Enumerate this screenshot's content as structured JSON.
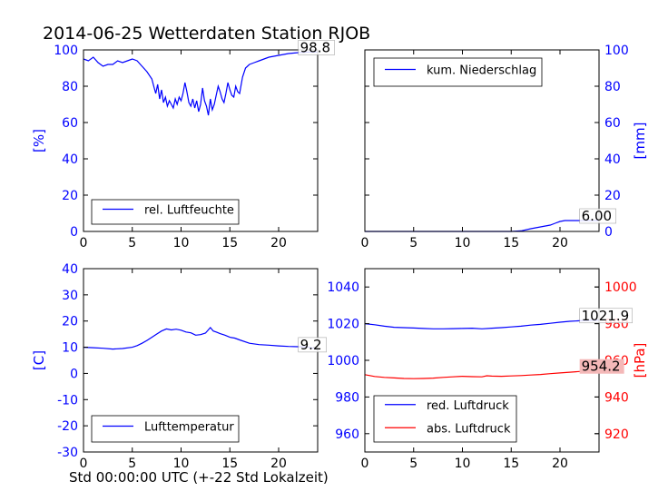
{
  "figure": {
    "title": "2014-06-25 Wetterdaten Station RJOB",
    "xlabel_bottom": "Std 00:00:00 UTC (+-22 Std Lokalzeit)"
  },
  "colors": {
    "blue": "#0000ff",
    "red": "#ff0000",
    "axis": "#000000"
  },
  "chart_data": [
    {
      "type": "line",
      "panel": "top-left",
      "ylabel": "[%]",
      "ylabel_side": "left",
      "xlim": [
        0,
        24
      ],
      "ylim": [
        0,
        100
      ],
      "xticks": [
        0,
        5,
        10,
        15,
        20
      ],
      "yticks": [
        0,
        20,
        40,
        60,
        80,
        100
      ],
      "ytick_color": "blue",
      "grid": false,
      "legend_position": "lower-left",
      "series": [
        {
          "name": "rel. Luftfeuchte",
          "color": "blue",
          "x": [
            0,
            0.5,
            1,
            1.5,
            2,
            2.5,
            3,
            3.5,
            4,
            4.5,
            5,
            5.5,
            6,
            6.5,
            7,
            7.2,
            7.4,
            7.6,
            7.8,
            8,
            8.2,
            8.4,
            8.6,
            8.8,
            9,
            9.2,
            9.4,
            9.6,
            9.8,
            10,
            10.2,
            10.4,
            10.6,
            10.8,
            11,
            11.2,
            11.4,
            11.6,
            11.8,
            12,
            12.2,
            12.4,
            12.6,
            12.8,
            13,
            13.2,
            13.4,
            13.6,
            13.8,
            14,
            14.2,
            14.4,
            14.6,
            14.8,
            15,
            15.2,
            15.4,
            15.6,
            15.8,
            16,
            16.3,
            16.6,
            17,
            17.5,
            18,
            18.5,
            19,
            20,
            21,
            22,
            23,
            24
          ],
          "y": [
            95,
            94,
            96,
            93,
            91,
            92,
            92,
            94,
            93,
            94,
            95,
            94,
            91,
            88,
            84,
            80,
            76,
            81,
            73,
            78,
            71,
            74,
            69,
            72,
            70,
            68,
            73,
            70,
            74,
            72,
            76,
            82,
            77,
            71,
            69,
            73,
            68,
            72,
            66,
            70,
            79,
            72,
            69,
            64,
            73,
            67,
            70,
            75,
            80,
            77,
            73,
            71,
            76,
            82,
            78,
            75,
            74,
            80,
            77,
            76,
            85,
            90,
            92,
            93,
            94,
            95,
            96,
            97,
            98,
            98.5,
            98.8,
            98.8
          ]
        }
      ],
      "annotations": [
        {
          "label": "98.8",
          "color": "black",
          "at": [
            22.2,
            98.8
          ]
        }
      ]
    },
    {
      "type": "line",
      "panel": "top-right",
      "ylabel": "[mm]",
      "ylabel_side": "right",
      "xlim": [
        0,
        24
      ],
      "ylim": [
        0,
        100
      ],
      "xticks": [
        0,
        5,
        10,
        15,
        20
      ],
      "yticks": [
        0,
        20,
        40,
        60,
        80,
        100
      ],
      "ytick_color": "blue",
      "grid": false,
      "legend_position": "upper-left",
      "series": [
        {
          "name": "kum. Niederschlag",
          "color": "blue",
          "x": [
            0,
            5,
            10,
            15,
            16,
            17,
            18,
            19,
            19.5,
            20,
            20.5,
            24
          ],
          "y": [
            0,
            0,
            0,
            0,
            0.3,
            1.5,
            2.5,
            3.5,
            4.5,
            5.5,
            6.0,
            6.0
          ]
        }
      ],
      "annotations": [
        {
          "label": "6.00",
          "color": "black",
          "at": [
            22.2,
            6.0
          ]
        }
      ]
    },
    {
      "type": "line",
      "panel": "bottom-left",
      "ylabel": "[C]",
      "ylabel_side": "left",
      "xlim": [
        0,
        24
      ],
      "ylim": [
        -30,
        40
      ],
      "xticks": [
        0,
        5,
        10,
        15,
        20
      ],
      "yticks": [
        -30,
        -20,
        -10,
        0,
        10,
        20,
        30,
        40
      ],
      "ytick_color": "blue",
      "grid": false,
      "legend_position": "lower-left",
      "series": [
        {
          "name": "Lufttemperatur",
          "color": "blue",
          "x": [
            0,
            1,
            2,
            3,
            4,
            5,
            5.5,
            6,
            6.5,
            7,
            7.5,
            8,
            8.5,
            9,
            9.5,
            10,
            10.5,
            11,
            11.5,
            12,
            12.5,
            13,
            13.3,
            13.6,
            14,
            14.5,
            15,
            15.5,
            16,
            17,
            18,
            19,
            20,
            21,
            22,
            23,
            24
          ],
          "y": [
            10,
            9.8,
            9.6,
            9.3,
            9.5,
            10,
            10.6,
            11.5,
            12.6,
            13.8,
            15,
            16.2,
            17,
            16.6,
            16.9,
            16.5,
            15.8,
            15.5,
            14.6,
            14.8,
            15.4,
            17.5,
            16.2,
            15.8,
            15.2,
            14.6,
            13.8,
            13.5,
            12.8,
            11.5,
            11,
            10.8,
            10.5,
            10.3,
            10.2,
            10.1,
            9.2
          ]
        }
      ],
      "annotations": [
        {
          "label": "9.2",
          "color": "black",
          "at": [
            22.2,
            9.2
          ]
        }
      ]
    },
    {
      "type": "line",
      "panel": "bottom-right",
      "ylabel": "[hPa]",
      "ylabel_side": "right",
      "ylabel_color": "red",
      "xlim": [
        0,
        24
      ],
      "ylim": [
        950,
        1050
      ],
      "ylim_right": [
        910,
        1010
      ],
      "xticks": [
        0,
        5,
        10,
        15,
        20
      ],
      "yticks": [
        960,
        980,
        1000,
        1020,
        1040
      ],
      "yticks_right": [
        920,
        940,
        960,
        980,
        1000
      ],
      "ytick_color": "blue",
      "ytick_color_right": "red",
      "grid": false,
      "legend_position": "lower-left",
      "series": [
        {
          "name": "red. Luftdruck",
          "color": "blue",
          "axis": "left",
          "x": [
            0,
            1,
            2,
            3,
            4,
            5,
            6,
            7,
            8,
            9,
            10,
            11,
            12,
            13,
            14,
            15,
            16,
            17,
            18,
            19,
            20,
            21,
            22,
            23,
            24
          ],
          "y": [
            1020,
            1019.4,
            1018.6,
            1018,
            1017.8,
            1017.6,
            1017.4,
            1017.2,
            1017.2,
            1017.3,
            1017.4,
            1017.5,
            1017.2,
            1017.5,
            1017.8,
            1018.2,
            1018.6,
            1019.2,
            1019.6,
            1020.2,
            1020.8,
            1021.3,
            1021.6,
            1021.8,
            1021.9
          ]
        },
        {
          "name": "abs. Luftdruck",
          "color": "red",
          "axis": "right",
          "x": [
            0,
            1,
            2,
            3,
            4,
            5,
            6,
            7,
            8,
            9,
            10,
            11,
            12,
            12.5,
            13,
            14,
            15,
            16,
            17,
            18,
            19,
            20,
            21,
            22,
            23,
            24
          ],
          "y": [
            952.2,
            951.2,
            950.7,
            950.4,
            950.1,
            950,
            950.1,
            950.3,
            950.7,
            951,
            951.3,
            951.1,
            951,
            951.6,
            951.4,
            951.3,
            951.5,
            951.7,
            952,
            952.3,
            952.7,
            953.1,
            953.5,
            953.9,
            954.1,
            954.2
          ]
        }
      ],
      "annotations": [
        {
          "label": "1021.9",
          "color": "black",
          "at": [
            22.2,
            1021.9
          ],
          "axis": "left"
        },
        {
          "label": "954.2",
          "color": "black",
          "highlight": "#f4b8b8",
          "at": [
            22.2,
            954.2
          ],
          "axis": "right"
        }
      ]
    }
  ]
}
